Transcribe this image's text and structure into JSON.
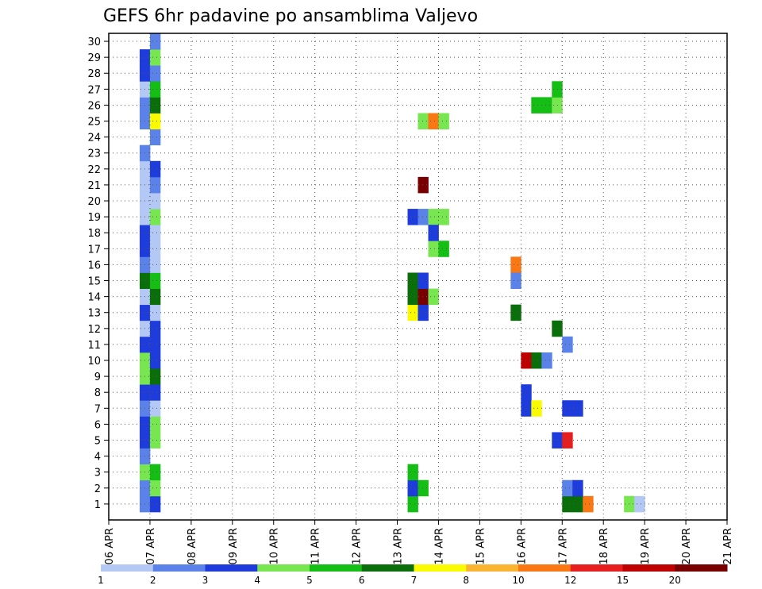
{
  "chart_data": {
    "type": "heatmap",
    "title": "GEFS 6hr padavine po ansamblima Valjevo",
    "xlabel": "",
    "ylabel": "",
    "x_range": [
      "2018-04-06 00:00",
      "2018-04-21 00:00"
    ],
    "x_tick_labels": [
      "06 APR",
      "07 APR",
      "08 APR",
      "09 APR",
      "10 APR",
      "11 APR",
      "12 APR",
      "13 APR",
      "14 APR",
      "15 APR",
      "16 APR",
      "17 APR",
      "18 APR",
      "19 APR",
      "20 APR",
      "21 APR"
    ],
    "y_range": [
      0,
      30
    ],
    "y_tick_labels": [
      "1",
      "2",
      "3",
      "4",
      "5",
      "6",
      "7",
      "8",
      "9",
      "10",
      "11",
      "12",
      "13",
      "14",
      "15",
      "16",
      "17",
      "18",
      "19",
      "20",
      "21",
      "22",
      "23",
      "24",
      "25",
      "26",
      "27",
      "28",
      "29",
      "30"
    ],
    "grid": true,
    "time_step_hours": 6,
    "colorbar": {
      "levels": [
        1,
        2,
        3,
        4,
        5,
        6,
        7,
        8,
        10,
        12,
        15,
        20
      ],
      "tick_labels": [
        "1",
        "2",
        "3",
        "4",
        "5",
        "6",
        "7",
        "8",
        "10",
        "12",
        "15",
        "20"
      ],
      "colors": [
        "#b4c8f5",
        "#5a82e8",
        "#1e3cdc",
        "#78e650",
        "#14be14",
        "#0a6e0a",
        "#fafa00",
        "#fab432",
        "#fa7814",
        "#e61e1e",
        "#be0000",
        "#780000"
      ]
    },
    "cells_description": "Each cell: member (1-30), time index (0-59, 6h steps from 06 APR 00), class index 1-12 matching colorbar colors",
    "cells": [
      [
        1,
        3,
        2
      ],
      [
        1,
        4,
        3
      ],
      [
        2,
        3,
        2
      ],
      [
        2,
        4,
        4
      ],
      [
        3,
        3,
        4
      ],
      [
        3,
        4,
        5
      ],
      [
        4,
        3,
        2
      ],
      [
        5,
        3,
        3
      ],
      [
        5,
        4,
        4
      ],
      [
        6,
        3,
        3
      ],
      [
        6,
        4,
        4
      ],
      [
        7,
        3,
        2
      ],
      [
        7,
        4,
        1
      ],
      [
        8,
        3,
        3
      ],
      [
        8,
        4,
        3
      ],
      [
        9,
        3,
        4
      ],
      [
        9,
        4,
        6
      ],
      [
        10,
        3,
        4
      ],
      [
        10,
        4,
        3
      ],
      [
        11,
        3,
        3
      ],
      [
        11,
        4,
        3
      ],
      [
        12,
        3,
        1
      ],
      [
        12,
        4,
        3
      ],
      [
        13,
        3,
        3
      ],
      [
        13,
        4,
        1
      ],
      [
        14,
        3,
        1
      ],
      [
        14,
        4,
        6
      ],
      [
        15,
        3,
        6
      ],
      [
        15,
        4,
        5
      ],
      [
        16,
        3,
        2
      ],
      [
        16,
        4,
        1
      ],
      [
        17,
        3,
        3
      ],
      [
        17,
        4,
        1
      ],
      [
        18,
        3,
        3
      ],
      [
        18,
        4,
        1
      ],
      [
        19,
        3,
        1
      ],
      [
        19,
        4,
        4
      ],
      [
        20,
        3,
        1
      ],
      [
        20,
        4,
        1
      ],
      [
        21,
        3,
        1
      ],
      [
        21,
        4,
        2
      ],
      [
        22,
        3,
        1
      ],
      [
        22,
        4,
        3
      ],
      [
        23,
        3,
        2
      ],
      [
        24,
        4,
        2
      ],
      [
        25,
        3,
        2
      ],
      [
        25,
        4,
        7
      ],
      [
        26,
        3,
        2
      ],
      [
        26,
        4,
        6
      ],
      [
        27,
        3,
        1
      ],
      [
        27,
        4,
        5
      ],
      [
        28,
        3,
        3
      ],
      [
        28,
        4,
        2
      ],
      [
        29,
        3,
        3
      ],
      [
        29,
        4,
        4
      ],
      [
        30,
        4,
        2
      ],
      [
        1,
        29,
        5
      ],
      [
        2,
        29,
        3
      ],
      [
        2,
        30,
        5
      ],
      [
        3,
        29,
        5
      ],
      [
        13,
        29,
        7
      ],
      [
        13,
        30,
        3
      ],
      [
        14,
        29,
        6
      ],
      [
        14,
        30,
        12
      ],
      [
        14,
        31,
        4
      ],
      [
        15,
        29,
        6
      ],
      [
        15,
        30,
        3
      ],
      [
        19,
        29,
        3
      ],
      [
        19,
        30,
        2
      ],
      [
        19,
        31,
        4
      ],
      [
        19,
        32,
        4
      ],
      [
        21,
        30,
        12
      ],
      [
        25,
        30,
        4
      ],
      [
        25,
        31,
        9
      ],
      [
        25,
        32,
        4
      ],
      [
        17,
        31,
        4
      ],
      [
        17,
        32,
        5
      ],
      [
        18,
        31,
        3
      ],
      [
        26,
        41,
        5
      ],
      [
        26,
        42,
        5
      ],
      [
        26,
        43,
        4
      ],
      [
        27,
        43,
        5
      ],
      [
        12,
        43,
        6
      ],
      [
        13,
        39,
        6
      ],
      [
        10,
        40,
        11
      ],
      [
        10,
        41,
        6
      ],
      [
        10,
        42,
        2
      ],
      [
        7,
        40,
        3
      ],
      [
        7,
        41,
        7
      ],
      [
        8,
        40,
        3
      ],
      [
        1,
        44,
        6
      ],
      [
        1,
        45,
        6
      ],
      [
        1,
        46,
        9
      ],
      [
        2,
        44,
        2
      ],
      [
        2,
        45,
        3
      ],
      [
        5,
        43,
        3
      ],
      [
        5,
        44,
        10
      ],
      [
        7,
        44,
        3
      ],
      [
        7,
        45,
        3
      ],
      [
        16,
        39,
        9
      ],
      [
        15,
        39,
        2
      ],
      [
        11,
        44,
        2
      ],
      [
        1,
        50,
        4
      ],
      [
        1,
        51,
        1
      ]
    ]
  }
}
